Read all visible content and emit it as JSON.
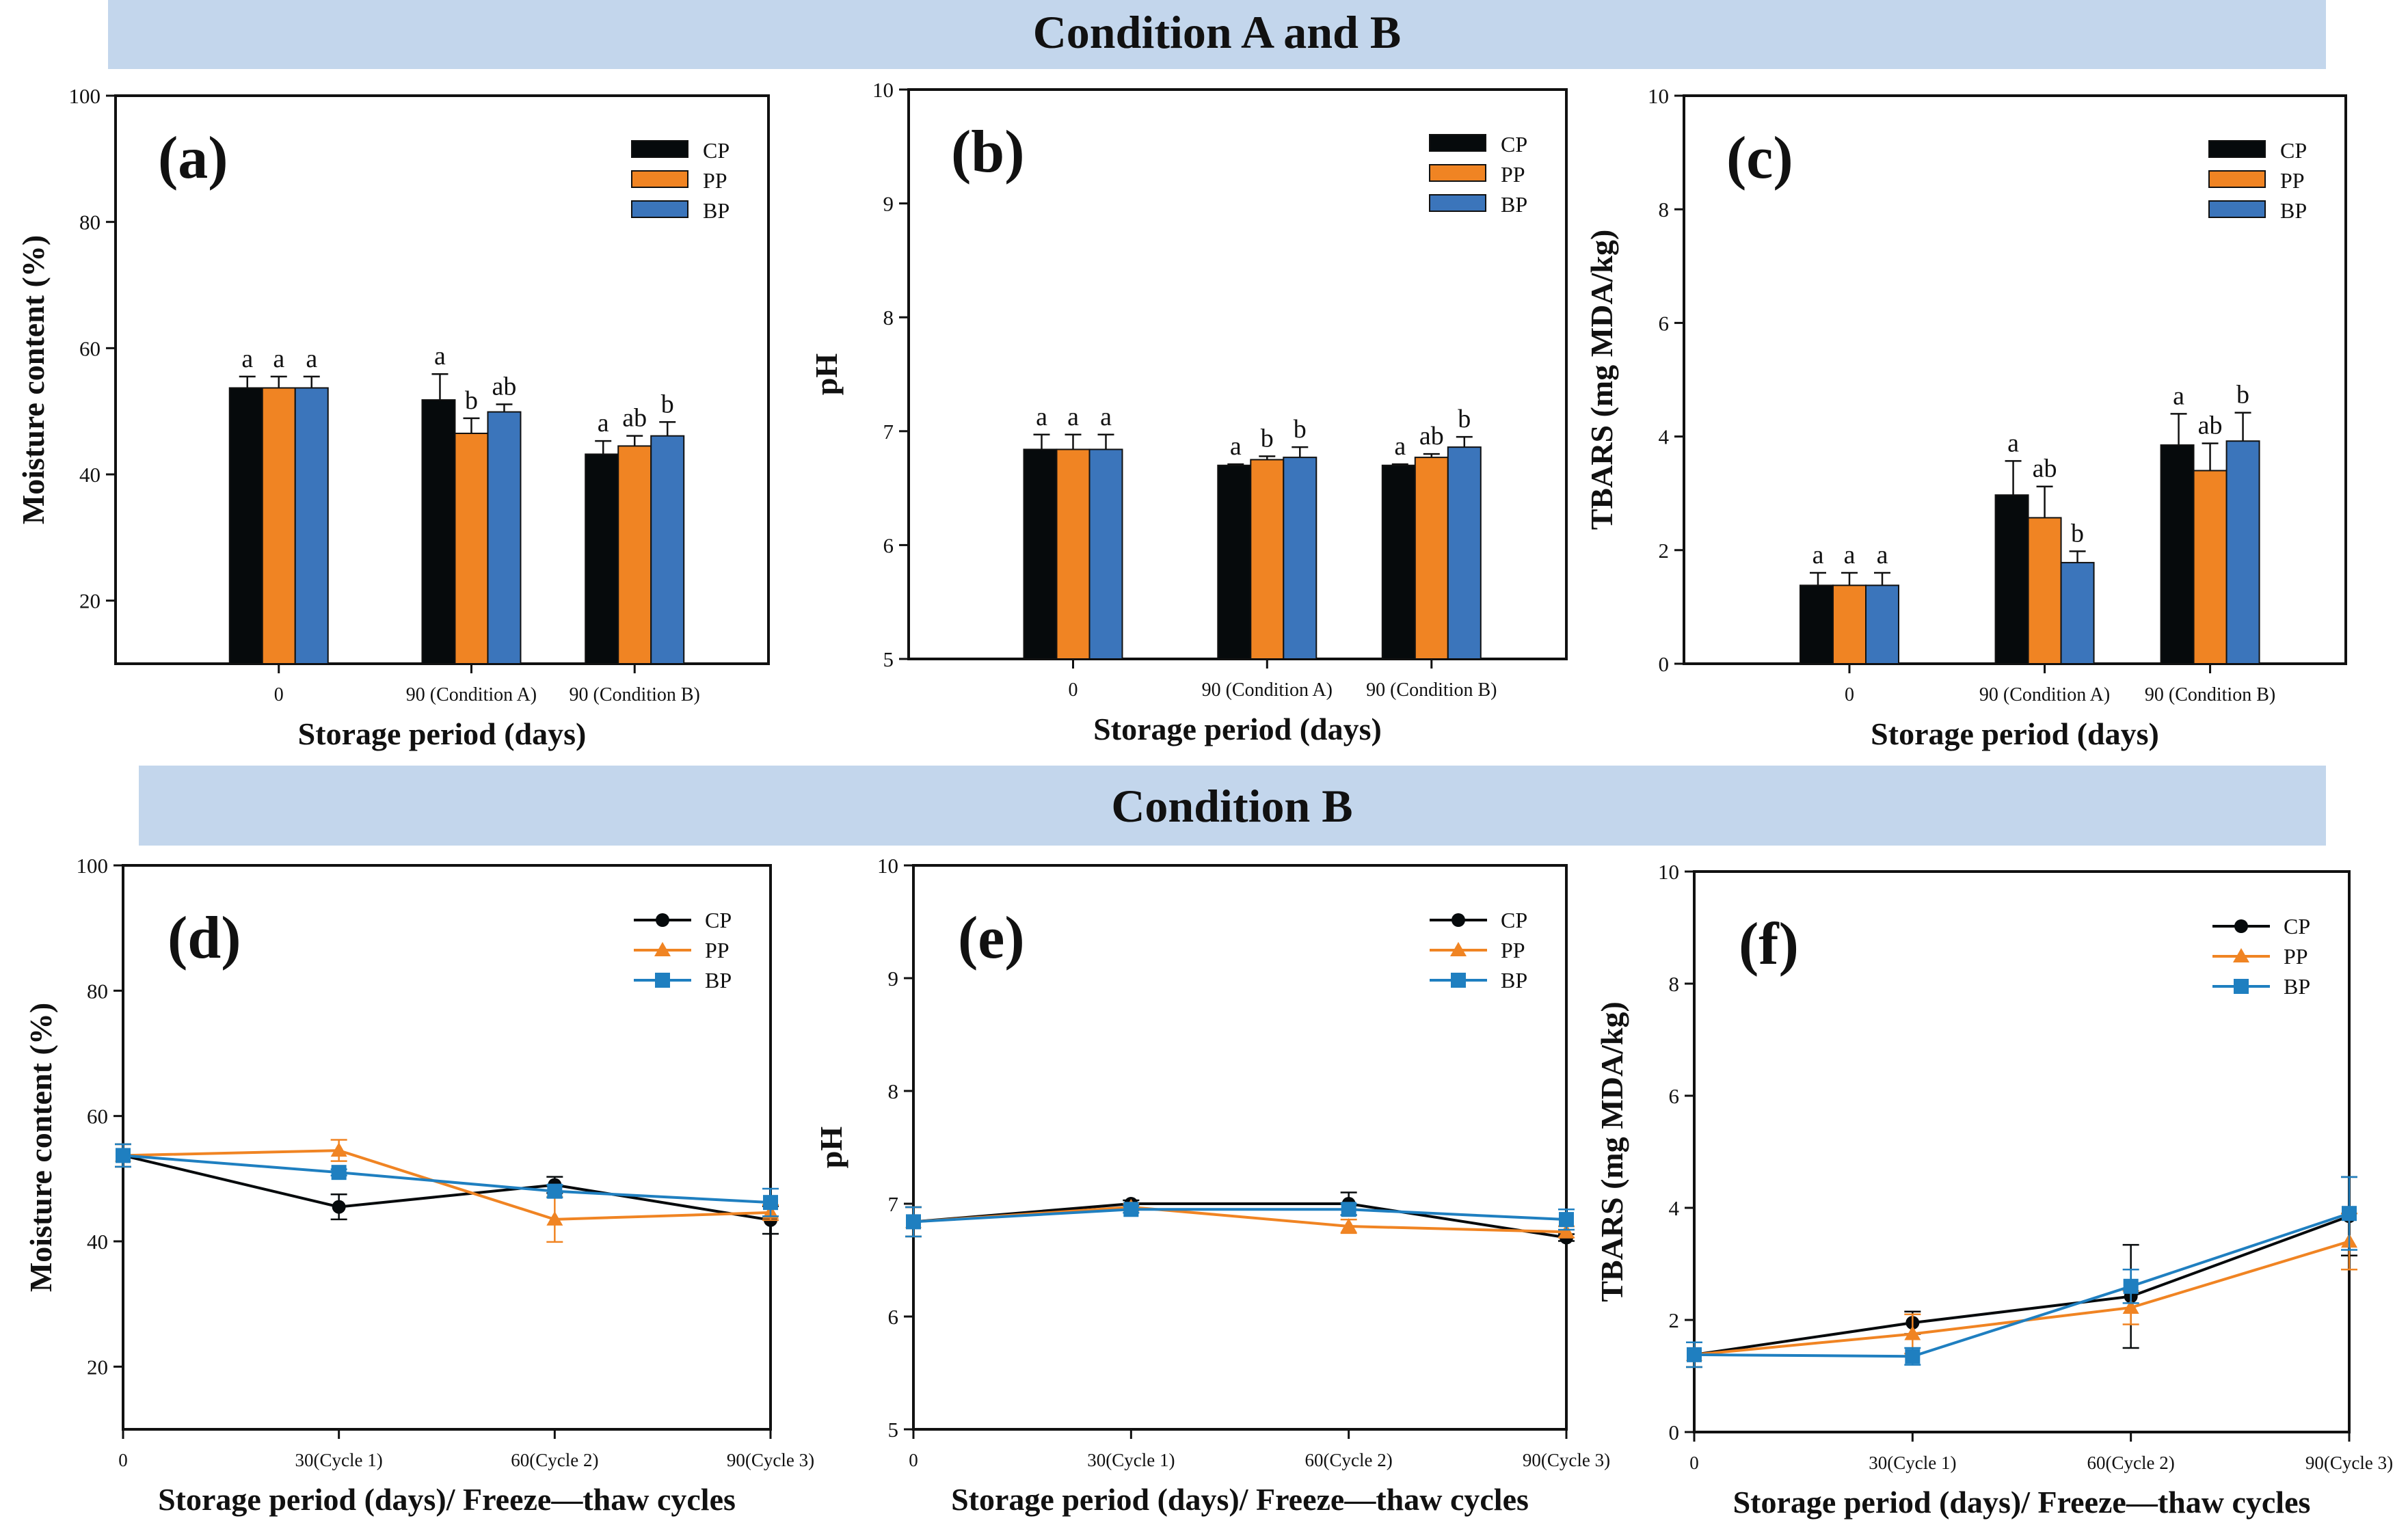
{
  "banners": [
    {
      "title": "Condition A and B"
    },
    {
      "title": "Condition B"
    }
  ],
  "colors": {
    "CP": "#060a0c",
    "PP": "#f08423",
    "BP": "#3b75bb",
    "BP_line": "#1f7fc0",
    "banner": "#c3d6ec"
  },
  "chart_data": [
    {
      "type": "bar",
      "label": "(a)",
      "title": "",
      "xlabel": "Storage period (days)",
      "ylabel": "Moisture content (%)",
      "ylim": [
        10,
        100
      ],
      "yticks": [
        20,
        40,
        60,
        80,
        100
      ],
      "categories": [
        "0",
        "90 (Condition A)",
        "90 (Condition B)"
      ],
      "series": [
        {
          "name": "CP",
          "values": [
            53.7,
            51.8,
            43.2
          ],
          "errors": [
            1.8,
            4.1,
            2.1
          ],
          "letters": [
            "a",
            "a",
            "a"
          ]
        },
        {
          "name": "PP",
          "values": [
            53.7,
            46.5,
            44.5
          ],
          "errors": [
            1.8,
            2.4,
            1.6
          ],
          "letters": [
            "a",
            "b",
            "ab"
          ]
        },
        {
          "name": "BP",
          "values": [
            53.7,
            49.9,
            46.1
          ],
          "errors": [
            1.8,
            1.2,
            2.2
          ],
          "letters": [
            "a",
            "ab",
            "b"
          ]
        }
      ]
    },
    {
      "type": "bar",
      "label": "(b)",
      "title": "",
      "xlabel": "Storage period (days)",
      "ylabel": "pH",
      "ylim": [
        5,
        10
      ],
      "yticks": [
        5,
        6,
        7,
        8,
        9,
        10
      ],
      "categories": [
        "0",
        "90 (Condition A)",
        "90 (Condition B)"
      ],
      "series": [
        {
          "name": "CP",
          "values": [
            6.84,
            6.7,
            6.7
          ],
          "errors": [
            0.13,
            0.01,
            0.01
          ],
          "letters": [
            "a",
            "a",
            "a"
          ]
        },
        {
          "name": "PP",
          "values": [
            6.84,
            6.75,
            6.77
          ],
          "errors": [
            0.13,
            0.03,
            0.03
          ],
          "letters": [
            "a",
            "b",
            "ab"
          ]
        },
        {
          "name": "BP",
          "values": [
            6.84,
            6.77,
            6.86
          ],
          "errors": [
            0.13,
            0.09,
            0.09
          ],
          "letters": [
            "a",
            "b",
            "b"
          ]
        }
      ]
    },
    {
      "type": "bar",
      "label": "(c)",
      "title": "",
      "xlabel": "Storage period (days)",
      "ylabel": "TBARS (mg MDA/kg)",
      "ylim": [
        0,
        10
      ],
      "yticks": [
        0,
        2,
        4,
        6,
        8,
        10
      ],
      "categories": [
        "0",
        "90 (Condition A)",
        "90 (Condition B)"
      ],
      "series": [
        {
          "name": "CP",
          "values": [
            1.38,
            2.97,
            3.85
          ],
          "errors": [
            0.22,
            0.6,
            0.55
          ],
          "letters": [
            "a",
            "a",
            "a"
          ]
        },
        {
          "name": "PP",
          "values": [
            1.38,
            2.57,
            3.4
          ],
          "errors": [
            0.22,
            0.55,
            0.48
          ],
          "letters": [
            "a",
            "ab",
            "ab"
          ]
        },
        {
          "name": "BP",
          "values": [
            1.38,
            1.78,
            3.92
          ],
          "errors": [
            0.22,
            0.2,
            0.5
          ],
          "letters": [
            "a",
            "b",
            "b"
          ]
        }
      ]
    },
    {
      "type": "line",
      "label": "(d)",
      "title": "",
      "xlabel": "Storage period (days)/ Freeze—thaw cycles",
      "ylabel": "Moisture content (%)",
      "ylim": [
        10,
        100
      ],
      "yticks": [
        20,
        40,
        60,
        80,
        100
      ],
      "x": [
        0,
        30,
        60,
        90
      ],
      "xticklabels": [
        "0",
        "30(Cycle 1)",
        "60(Cycle 2)",
        "90(Cycle 3)"
      ],
      "xlim": [
        0,
        90
      ],
      "series": [
        {
          "name": "CP",
          "marker": "circle",
          "values": [
            53.7,
            45.5,
            49.0,
            43.4
          ],
          "errors": [
            1.8,
            2.0,
            1.3,
            2.2
          ]
        },
        {
          "name": "PP",
          "marker": "triangle",
          "values": [
            53.7,
            54.5,
            43.5,
            44.6
          ],
          "errors": [
            1.8,
            1.7,
            3.6,
            1.2
          ]
        },
        {
          "name": "BP",
          "marker": "square",
          "values": [
            53.7,
            51.0,
            48.0,
            46.2
          ],
          "errors": [
            1.8,
            0.5,
            1.0,
            2.2
          ]
        }
      ]
    },
    {
      "type": "line",
      "label": "(e)",
      "title": "",
      "xlabel": "Storage period (days)/ Freeze—thaw cycles",
      "ylabel": "pH",
      "ylim": [
        5,
        10
      ],
      "yticks": [
        5,
        6,
        7,
        8,
        9,
        10
      ],
      "x": [
        0,
        30,
        60,
        90
      ],
      "xticklabels": [
        "0",
        "30(Cycle 1)",
        "60(Cycle 2)",
        "90(Cycle 3)"
      ],
      "xlim": [
        0,
        90
      ],
      "series": [
        {
          "name": "CP",
          "marker": "circle",
          "values": [
            6.84,
            7.0,
            7.0,
            6.7
          ],
          "errors": [
            0.13,
            0.03,
            0.1,
            0.03
          ]
        },
        {
          "name": "PP",
          "marker": "triangle",
          "values": [
            6.84,
            6.97,
            6.8,
            6.75
          ],
          "errors": [
            0.13,
            0.03,
            0.06,
            0.05
          ]
        },
        {
          "name": "BP",
          "marker": "square",
          "values": [
            6.84,
            6.95,
            6.95,
            6.86
          ],
          "errors": [
            0.13,
            0.03,
            0.05,
            0.09
          ]
        }
      ]
    },
    {
      "type": "line",
      "label": "(f)",
      "title": "",
      "xlabel": "Storage period (days)/ Freeze—thaw cycles",
      "ylabel": "TBARS (mg MDA/kg)",
      "ylim": [
        0,
        10
      ],
      "yticks": [
        0,
        2,
        4,
        6,
        8,
        10
      ],
      "x": [
        0,
        30,
        60,
        90
      ],
      "xticklabels": [
        "0",
        "30(Cycle 1)",
        "60(Cycle 2)",
        "90(Cycle 3)"
      ],
      "xlim": [
        0,
        90
      ],
      "series": [
        {
          "name": "CP",
          "marker": "circle",
          "values": [
            1.38,
            1.95,
            2.42,
            3.85
          ],
          "errors": [
            0.22,
            0.2,
            0.92,
            0.7
          ],
          "_": ""
        },
        {
          "name": "PP",
          "marker": "triangle",
          "values": [
            1.38,
            1.75,
            2.22,
            3.4
          ],
          "errors": [
            0.22,
            0.35,
            0.3,
            0.5
          ]
        },
        {
          "name": "BP",
          "marker": "square",
          "values": [
            1.38,
            1.35,
            2.6,
            3.9
          ],
          "errors": [
            0.22,
            0.15,
            0.3,
            0.65
          ]
        }
      ]
    }
  ]
}
